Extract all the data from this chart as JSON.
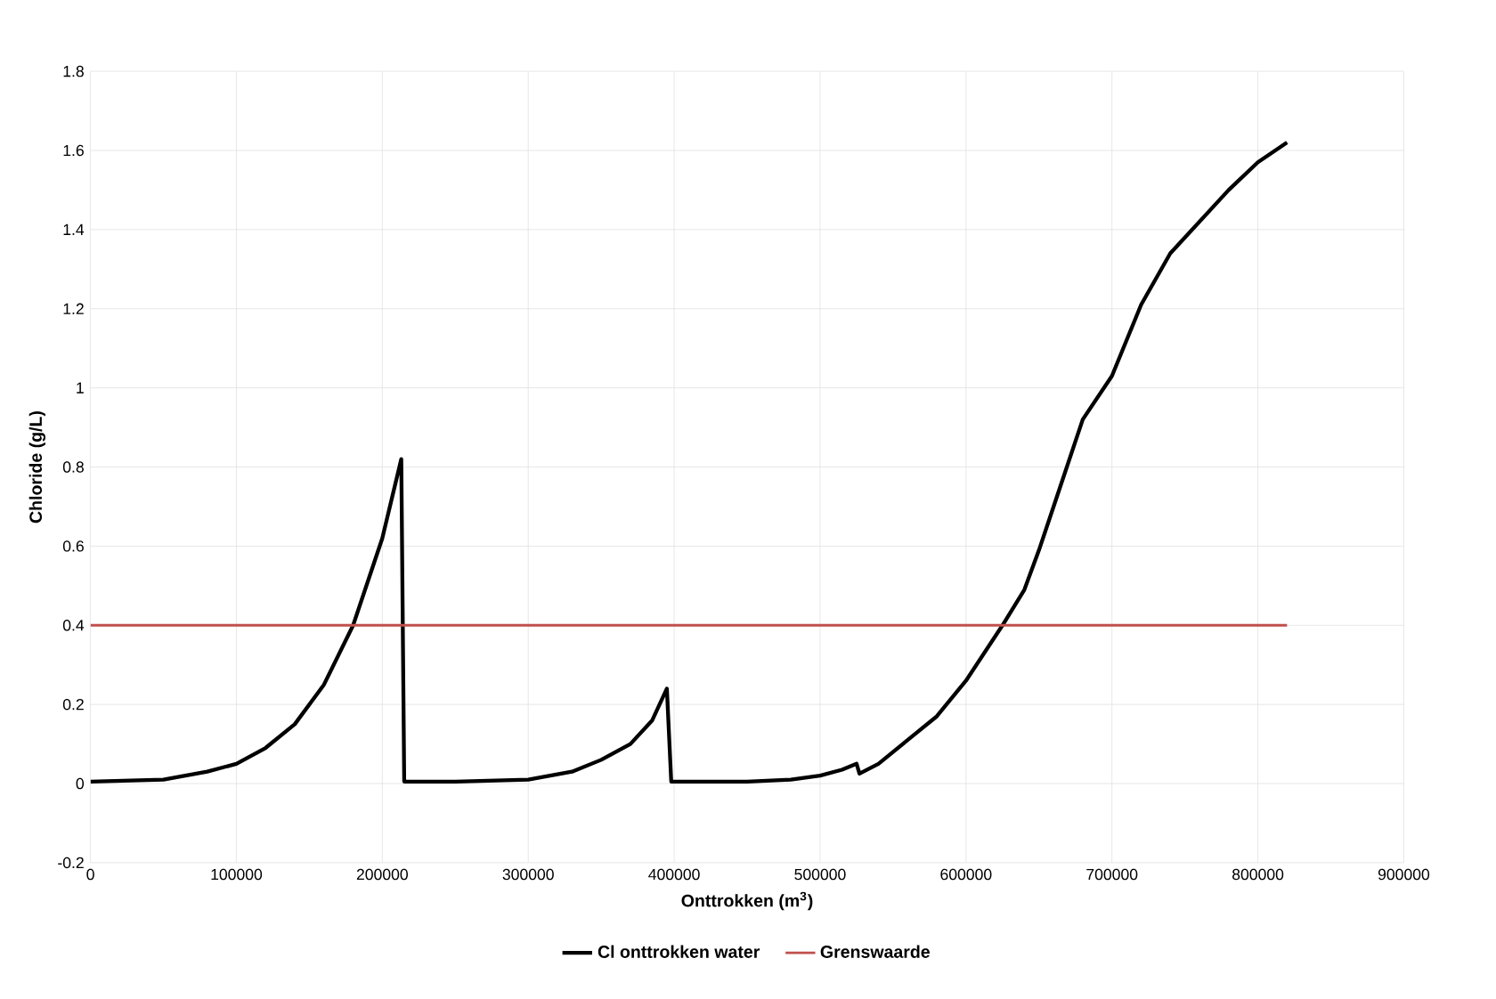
{
  "chart_data": {
    "type": "line",
    "xlabel": "Onttrokken (m$^{3}$)",
    "ylabel": "Chloride (g/L)",
    "xlim": [
      0,
      900000
    ],
    "ylim": [
      -0.2,
      1.8
    ],
    "xticks": [
      0,
      100000,
      200000,
      300000,
      400000,
      500000,
      600000,
      700000,
      800000,
      900000
    ],
    "yticks": [
      -0.2,
      0,
      0.2,
      0.4,
      0.6,
      0.8,
      1,
      1.2,
      1.4,
      1.6,
      1.8
    ],
    "grid": true,
    "legend": "bottom",
    "marker": "none",
    "line_style": "solid",
    "series": [
      {
        "name": "Cl onttrokken water",
        "color": "#000000",
        "x": [
          0,
          50000,
          80000,
          100000,
          120000,
          140000,
          160000,
          180000,
          200000,
          213000,
          215000,
          250000,
          300000,
          330000,
          350000,
          370000,
          385000,
          395000,
          398000,
          450000,
          480000,
          500000,
          515000,
          525000,
          527000,
          540000,
          560000,
          580000,
          600000,
          625000,
          640000,
          650000,
          660000,
          680000,
          700000,
          720000,
          740000,
          750000,
          780000,
          800000,
          820000
        ],
        "values": [
          0.005,
          0.01,
          0.03,
          0.05,
          0.09,
          0.15,
          0.25,
          0.4,
          0.62,
          0.82,
          0.005,
          0.005,
          0.01,
          0.03,
          0.06,
          0.1,
          0.16,
          0.24,
          0.005,
          0.005,
          0.01,
          0.02,
          0.035,
          0.05,
          0.025,
          0.05,
          0.11,
          0.17,
          0.26,
          0.4,
          0.49,
          0.59,
          0.7,
          0.92,
          1.03,
          1.21,
          1.34,
          1.38,
          1.5,
          1.57,
          1.62
        ]
      },
      {
        "name": "Grenswaarde",
        "color": "#c0504d",
        "x": [
          0,
          820000
        ],
        "values": [
          0.4,
          0.4
        ]
      }
    ]
  }
}
